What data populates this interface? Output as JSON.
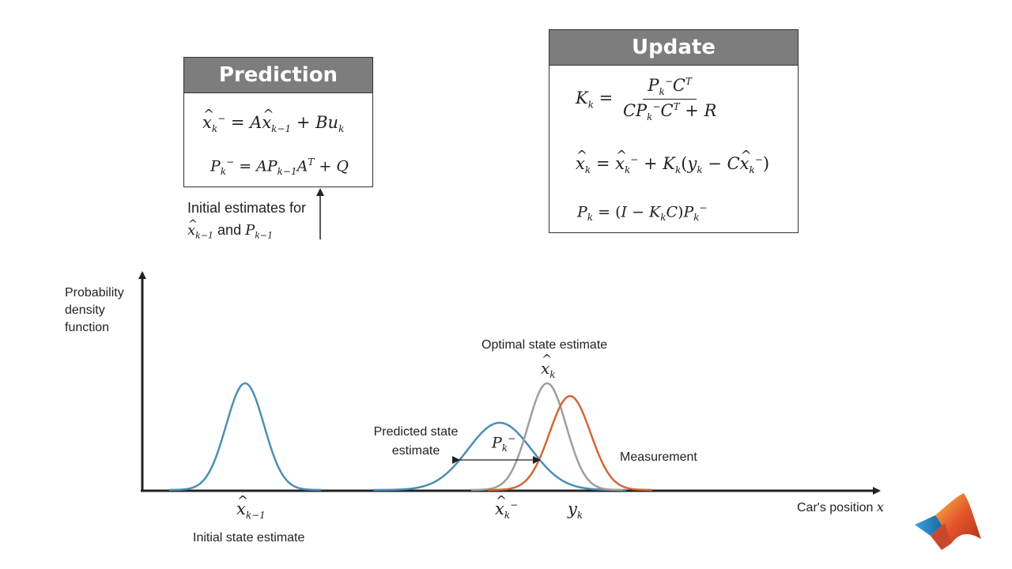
{
  "prediction": {
    "title": "Prediction",
    "eq1": "x̂ₖ⁻ = Ax̂ₖ₋₁ + Buₖ",
    "eq2": "Pₖ⁻ = APₖ₋₁Aᵀ + Q"
  },
  "initial_estimates": {
    "line1": "Initial estimates for",
    "line2": "x̂ₖ₋₁ and Pₖ₋₁"
  },
  "update": {
    "title": "Update",
    "eq1": "Kₖ = Pₖ⁻Cᵀ / (CPₖ⁻Cᵀ + R)",
    "eq2": "x̂ₖ = x̂ₖ⁻ + Kₖ(yₖ − Cx̂ₖ⁻)",
    "eq3": "Pₖ = (I − KₖC)Pₖ⁻"
  },
  "plot": {
    "y_axis_label": "Probability density function",
    "x_axis_label": "Car's position x",
    "labels": {
      "optimal": "Optimal state estimate",
      "predicted": "Predicted state estimate",
      "measurement": "Measurement",
      "initial": "Initial state estimate",
      "xk_hat": "x̂ₖ",
      "pk_minus": "Pₖ⁻",
      "xk1_hat": "x̂ₖ₋₁",
      "xk_minus": "x̂ₖ⁻",
      "yk": "yₖ"
    },
    "curves": [
      {
        "name": "initial",
        "mean": 310,
        "sd": 24,
        "peak": 1.0,
        "color": "#4a8fb5"
      },
      {
        "name": "predicted",
        "mean": 632,
        "sd": 40,
        "peak": 0.63,
        "color": "#4a8fb5"
      },
      {
        "name": "optimal",
        "mean": 692,
        "sd": 24,
        "peak": 1.0,
        "color": "#9e9e9e"
      },
      {
        "name": "measurement",
        "mean": 721,
        "sd": 26,
        "peak": 0.88,
        "color": "#d0683a"
      }
    ]
  },
  "colors": {
    "header_bg": "#7d7d7d",
    "blue": "#4a8fb5",
    "gray": "#9e9e9e",
    "orange": "#d0683a"
  },
  "logo": "matlab-membrane-logo"
}
